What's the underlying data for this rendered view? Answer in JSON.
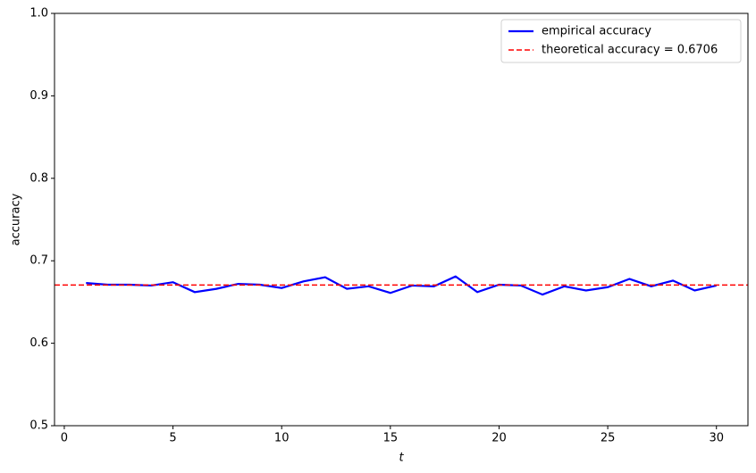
{
  "chart_data": {
    "type": "line",
    "x_label": "t",
    "y_label": "accuracy",
    "x": [
      1,
      2,
      3,
      4,
      5,
      6,
      7,
      8,
      9,
      10,
      11,
      12,
      13,
      14,
      15,
      16,
      17,
      18,
      19,
      20,
      21,
      22,
      23,
      24,
      25,
      26,
      27,
      28,
      29,
      30
    ],
    "series": [
      {
        "name": "empirical accuracy",
        "color": "#0000ff",
        "values": [
          0.673,
          0.671,
          0.671,
          0.67,
          0.674,
          0.662,
          0.666,
          0.672,
          0.671,
          0.667,
          0.675,
          0.68,
          0.666,
          0.669,
          0.661,
          0.67,
          0.669,
          0.681,
          0.662,
          0.671,
          0.67,
          0.659,
          0.669,
          0.664,
          0.668,
          0.678,
          0.669,
          0.676,
          0.664,
          0.67
        ]
      }
    ],
    "hline": {
      "name": "theoretical accuracy = 0.6706",
      "value": 0.6706,
      "color": "#ff0000"
    },
    "xlim": [
      -0.45,
      31.45
    ],
    "xticks": [
      0,
      5,
      10,
      15,
      20,
      25,
      30
    ],
    "ylim": [
      0.5,
      1.0
    ],
    "yticks": [
      0.5,
      0.6,
      0.7,
      0.8,
      0.9,
      {
        "value": 1.0,
        "label": "1.0"
      }
    ],
    "legend": "upper right"
  }
}
